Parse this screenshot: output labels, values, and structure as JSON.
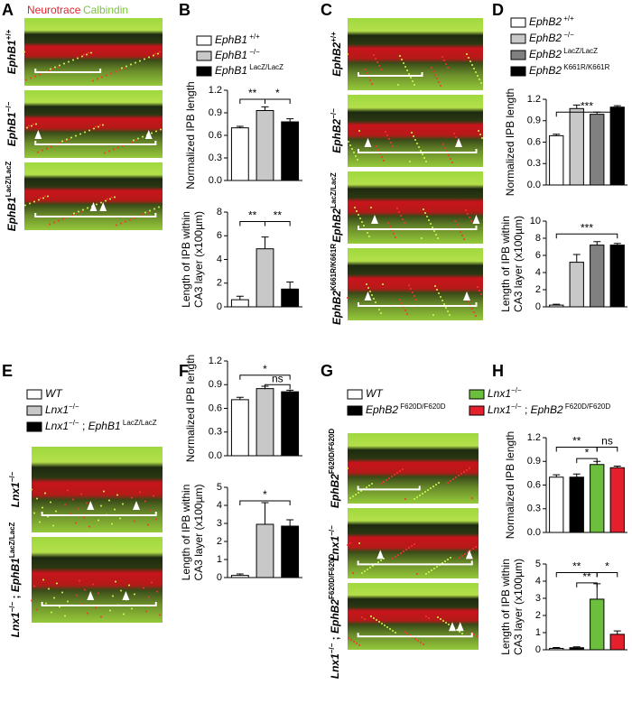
{
  "panel_letters": [
    "A",
    "B",
    "C",
    "D",
    "E",
    "F",
    "G",
    "H"
  ],
  "stain_labels": [
    "Neurotrace",
    "Calbindin"
  ],
  "images": {
    "A": [
      [
        {
          "text": "EphB1",
          "style": "italic"
        },
        {
          "text": "+/+",
          "style": "sup"
        }
      ],
      [
        {
          "text": "EphB1",
          "style": "italic"
        },
        {
          "text": "−/−",
          "style": "sup"
        }
      ],
      [
        {
          "text": "EphB1",
          "style": "italic"
        },
        {
          "text": "LacZ/LacZ",
          "style": "sup"
        }
      ]
    ],
    "C": [
      [
        {
          "text": "EphB2",
          "style": "italic"
        },
        {
          "text": "+/+",
          "style": "sup"
        }
      ],
      [
        {
          "text": "EphB2",
          "style": "italic"
        },
        {
          "text": "−/−",
          "style": "sup"
        }
      ],
      [
        {
          "text": "EphB2",
          "style": "italic"
        },
        {
          "text": "LacZ/LacZ",
          "style": "sup"
        }
      ],
      [
        {
          "text": "EphB2",
          "style": "italic"
        },
        {
          "text": "K661R/K661R",
          "style": "sup"
        }
      ]
    ],
    "E": [
      [
        {
          "text": "Lnx1",
          "style": "italic"
        },
        {
          "text": "−/−",
          "style": "sup"
        }
      ],
      [
        {
          "text": "Lnx1",
          "style": "italic"
        },
        {
          "text": "−/−",
          "style": "sup"
        },
        {
          "text": " ; ",
          "style": "normal"
        },
        {
          "text": "EphB1",
          "style": "italic"
        },
        {
          "text": "LacZ/LacZ",
          "style": "sup"
        }
      ]
    ],
    "G": [
      [
        {
          "text": "EphB2",
          "style": "italic"
        },
        {
          "text": "F620D/F620D",
          "style": "sup"
        }
      ],
      [
        {
          "text": "Lnx1",
          "style": "italic"
        },
        {
          "text": "−/−",
          "style": "sup"
        }
      ],
      [
        {
          "text": "Lnx1",
          "style": "italic"
        },
        {
          "text": "−/−",
          "style": "sup"
        },
        {
          "text": " ; ",
          "style": "normal"
        },
        {
          "text": "EphB2",
          "style": "italic"
        },
        {
          "text": "F620D/F620D",
          "style": "sup"
        }
      ]
    ]
  },
  "chart_data": [
    {
      "type": "bar",
      "ylabel": [
        "Normalized IPB length"
      ],
      "categories": [
        [
          {
            "text": "EphB1",
            "style": "italic"
          },
          {
            "text": " +/+",
            "style": "sup"
          }
        ],
        [
          {
            "text": "EphB1",
            "style": "italic"
          },
          {
            "text": " −/−",
            "style": "sup"
          }
        ],
        [
          {
            "text": "EphB1",
            "style": "italic"
          },
          {
            "text": " LacZ/LacZ",
            "style": "sup"
          }
        ]
      ],
      "colors": [
        "#ffffff",
        "#c8c8c8",
        "#000000"
      ],
      "values": [
        0.7,
        0.93,
        0.78
      ],
      "errors": [
        0.02,
        0.05,
        0.04
      ],
      "ylim": [
        0,
        1.2
      ],
      "yticks": [
        {
          "value": 0,
          "label": "0.0"
        },
        0.3,
        0.6,
        0.9,
        1.2
      ],
      "annotations": [
        "**",
        "*"
      ]
    },
    {
      "type": "bar",
      "ylabel": [
        "Length of IPB within",
        "CA3 layer (x100µm)"
      ],
      "colors": [
        "#ffffff",
        "#c8c8c8",
        "#000000"
      ],
      "values": [
        0.6,
        4.9,
        1.5
      ],
      "errors": [
        0.3,
        1.0,
        0.6
      ],
      "ylim": [
        0,
        8
      ],
      "yticks": [
        0,
        2,
        4,
        6,
        8
      ],
      "annotations": [
        "**",
        "**"
      ]
    },
    {
      "type": "bar",
      "ylabel": [
        "Normalized IPB length"
      ],
      "categories": [
        [
          {
            "text": "EphB2",
            "style": "italic"
          },
          {
            "text": " +/+",
            "style": "sup"
          }
        ],
        [
          {
            "text": "EphB2",
            "style": "italic"
          },
          {
            "text": " −/−",
            "style": "sup"
          }
        ],
        [
          {
            "text": "EphB2",
            "style": "italic"
          },
          {
            "text": " LacZ/LacZ",
            "style": "sup"
          }
        ],
        [
          {
            "text": "EphB2",
            "style": "italic"
          },
          {
            "text": " K661R/K661R",
            "style": "sup"
          }
        ]
      ],
      "colors": [
        "#ffffff",
        "#c8c8c8",
        "#808080",
        "#000000"
      ],
      "values": [
        0.69,
        1.07,
        0.99,
        1.09
      ],
      "errors": [
        0.02,
        0.05,
        0.03,
        0.02
      ],
      "ylim": [
        0,
        1.2
      ],
      "yticks": [
        {
          "value": 0,
          "label": "0.0"
        },
        0.3,
        0.6,
        0.9,
        1.2
      ],
      "annotations": [
        "***"
      ]
    },
    {
      "type": "bar",
      "ylabel": [
        "Length of IPB within",
        "CA3 layer (x100µm)"
      ],
      "colors": [
        "#ffffff",
        "#c8c8c8",
        "#808080",
        "#000000"
      ],
      "values": [
        0.2,
        5.2,
        7.2,
        7.2
      ],
      "errors": [
        0.1,
        0.9,
        0.4,
        0.2
      ],
      "ylim": [
        0,
        10
      ],
      "yticks": [
        0,
        2,
        4,
        6,
        8,
        10
      ],
      "annotations": [
        "***"
      ]
    },
    {
      "type": "bar",
      "ylabel": [
        "Normalized IPB length"
      ],
      "categories": [
        [
          {
            "text": "WT",
            "style": "italic"
          }
        ],
        [
          {
            "text": "Lnx1",
            "style": "italic"
          },
          {
            "text": "−/−",
            "style": "sup"
          }
        ],
        [
          {
            "text": "Lnx1",
            "style": "italic"
          },
          {
            "text": "−/−",
            "style": "sup"
          },
          {
            "text": " ; ",
            "style": "normal"
          },
          {
            "text": "EphB1",
            "style": "italic"
          },
          {
            "text": " LacZ/LacZ",
            "style": "sup"
          }
        ]
      ],
      "colors": [
        "#ffffff",
        "#c8c8c8",
        "#000000"
      ],
      "values": [
        0.71,
        0.85,
        0.81
      ],
      "errors": [
        0.03,
        0.03,
        0.02
      ],
      "ylim": [
        0,
        1.2
      ],
      "yticks": [
        {
          "value": 0,
          "label": "0.0"
        },
        0.3,
        0.6,
        0.9,
        1.2
      ],
      "annotations": [
        "*",
        "ns"
      ]
    },
    {
      "type": "bar",
      "ylabel": [
        "Length of IPB within",
        "CA3 layer (x100µm)"
      ],
      "colors": [
        "#ffffff",
        "#c8c8c8",
        "#000000"
      ],
      "values": [
        0.12,
        2.95,
        2.85
      ],
      "errors": [
        0.08,
        1.2,
        0.35
      ],
      "ylim": [
        0,
        5
      ],
      "yticks": [
        0,
        1,
        2,
        3,
        4,
        5
      ],
      "annotations": [
        "*"
      ]
    },
    {
      "type": "bar",
      "ylabel": [
        "Normalized IPB length"
      ],
      "categories": [
        [
          {
            "text": "WT",
            "style": "italic"
          }
        ],
        [
          {
            "text": "EphB2",
            "style": "italic"
          },
          {
            "text": " F620D/F620D",
            "style": "sup"
          }
        ],
        [
          {
            "text": "Lnx1",
            "style": "italic"
          },
          {
            "text": "−/−",
            "style": "sup"
          }
        ],
        [
          {
            "text": "Lnx1",
            "style": "italic"
          },
          {
            "text": "−/−",
            "style": "sup"
          },
          {
            "text": " ; ",
            "style": "normal"
          },
          {
            "text": "EphB2",
            "style": "italic"
          },
          {
            "text": " F620D/F620D",
            "style": "sup"
          }
        ]
      ],
      "colors": [
        "#ffffff",
        "#000000",
        "#6cbf3c",
        "#e3202b"
      ],
      "values": [
        0.7,
        0.7,
        0.86,
        0.82
      ],
      "errors": [
        0.03,
        0.04,
        0.04,
        0.02
      ],
      "ylim": [
        0,
        1.2
      ],
      "yticks": [
        {
          "value": 0,
          "label": "0.0"
        },
        0.3,
        0.6,
        0.9,
        1.2
      ],
      "annotations": [
        "**",
        "*",
        "ns"
      ]
    },
    {
      "type": "bar",
      "ylabel": [
        "Length of IPB within",
        "CA3 layer (x100µm)"
      ],
      "colors": [
        "#ffffff",
        "#000000",
        "#6cbf3c",
        "#e3202b"
      ],
      "values": [
        0.08,
        0.12,
        2.95,
        0.9
      ],
      "errors": [
        0.05,
        0.05,
        0.9,
        0.2
      ],
      "ylim": [
        0,
        5
      ],
      "yticks": [
        0,
        1,
        2,
        3,
        4,
        5
      ],
      "annotations": [
        "**",
        "**",
        "*"
      ]
    }
  ]
}
